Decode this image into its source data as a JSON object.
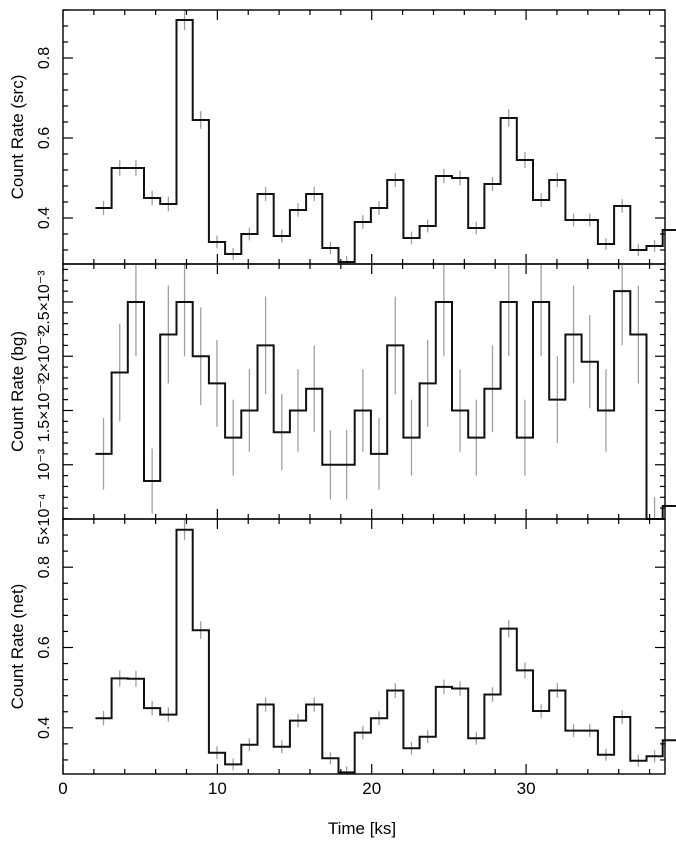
{
  "chart_data": {
    "type": "line",
    "style": "step histogram with vertical error bars (light grey)",
    "xlabel": "Time [ks]",
    "xlim": [
      0,
      39
    ],
    "x_ticks": [
      0,
      10,
      20,
      30
    ],
    "x_tick_labels": [
      "0",
      "10",
      "20",
      "30"
    ],
    "bin_width_ks": 1.05,
    "x": [
      2.1,
      3.15,
      4.2,
      5.25,
      6.3,
      7.35,
      8.4,
      9.45,
      10.5,
      11.55,
      12.6,
      13.65,
      14.7,
      15.75,
      16.8,
      17.85,
      18.9,
      19.95,
      21.0,
      22.05,
      23.1,
      24.15,
      25.2,
      26.25,
      27.3,
      28.35,
      29.4,
      30.45,
      31.5,
      32.55,
      33.6,
      34.65,
      35.7,
      36.75,
      37.8
    ],
    "panels": [
      {
        "ylabel": "Count Rate (src)",
        "ylim": [
          0.285,
          0.92
        ],
        "y_ticks": [
          0.4,
          0.6,
          0.8
        ],
        "y_tick_labels": [
          "0.4",
          "0.6",
          "0.8"
        ],
        "values": [
          0.425,
          0.525,
          0.525,
          0.45,
          0.435,
          0.895,
          0.645,
          0.34,
          0.31,
          0.36,
          0.46,
          0.355,
          0.42,
          0.46,
          0.325,
          0.29,
          0.39,
          0.425,
          0.495,
          0.35,
          0.38,
          0.505,
          0.5,
          0.375,
          0.485,
          0.65,
          0.545,
          0.445,
          0.495,
          0.395,
          0.395,
          0.335,
          0.43,
          0.32,
          0.33
        ],
        "errors": [
          0.018,
          0.02,
          0.02,
          0.018,
          0.018,
          0.025,
          0.022,
          0.016,
          0.015,
          0.016,
          0.018,
          0.016,
          0.017,
          0.018,
          0.015,
          0.015,
          0.017,
          0.017,
          0.018,
          0.016,
          0.016,
          0.018,
          0.018,
          0.016,
          0.018,
          0.022,
          0.02,
          0.017,
          0.018,
          0.016,
          0.016,
          0.015,
          0.017,
          0.015,
          0.015
        ],
        "last_bin_value": 0.37
      },
      {
        "ylabel": "Count Rate (bg)",
        "ylim": [
          0.0005,
          0.00285
        ],
        "y_ticks": [
          0.0005,
          0.001,
          0.0015,
          0.002,
          0.0025
        ],
        "y_tick_labels": [
          "5×10⁻⁴",
          "10⁻³",
          "1.5×10⁻³",
          "2×10⁻³",
          "2.5×10⁻³"
        ],
        "values": [
          0.0011,
          0.00185,
          0.0025,
          0.00085,
          0.0022,
          0.0025,
          0.002,
          0.00175,
          0.00125,
          0.0015,
          0.0021,
          0.0013,
          0.0015,
          0.0017,
          0.001,
          0.001,
          0.0015,
          0.0011,
          0.0021,
          0.00125,
          0.00175,
          0.0025,
          0.0015,
          0.00125,
          0.0017,
          0.0025,
          0.00125,
          0.0025,
          0.0016,
          0.0022,
          0.00195,
          0.0015,
          0.0026,
          0.0022,
          0.0005
        ],
        "errors": [
          0.00033,
          0.00045,
          0.0005,
          0.0003,
          0.00045,
          0.0005,
          0.00045,
          0.0004,
          0.00035,
          0.00038,
          0.00045,
          0.00035,
          0.00038,
          0.0004,
          0.00032,
          0.00032,
          0.00038,
          0.00033,
          0.00045,
          0.00035,
          0.0004,
          0.0005,
          0.00038,
          0.00035,
          0.0004,
          0.0005,
          0.00035,
          0.0005,
          0.0004,
          0.00045,
          0.00043,
          0.00038,
          0.0005,
          0.00045,
          0.0002
        ],
        "last_bin_value": 0.00062
      },
      {
        "ylabel": "Count Rate (net)",
        "ylim": [
          0.285,
          0.92
        ],
        "y_ticks": [
          0.4,
          0.6,
          0.8
        ],
        "y_tick_labels": [
          "0.4",
          "0.6",
          "0.8"
        ],
        "values": [
          0.424,
          0.523,
          0.522,
          0.449,
          0.433,
          0.893,
          0.643,
          0.338,
          0.309,
          0.358,
          0.458,
          0.353,
          0.418,
          0.458,
          0.324,
          0.289,
          0.388,
          0.424,
          0.493,
          0.349,
          0.378,
          0.502,
          0.498,
          0.374,
          0.483,
          0.647,
          0.543,
          0.442,
          0.493,
          0.393,
          0.393,
          0.333,
          0.427,
          0.318,
          0.329
        ],
        "errors": [
          0.018,
          0.02,
          0.02,
          0.018,
          0.018,
          0.025,
          0.022,
          0.016,
          0.015,
          0.016,
          0.018,
          0.016,
          0.017,
          0.018,
          0.015,
          0.015,
          0.017,
          0.017,
          0.018,
          0.016,
          0.016,
          0.018,
          0.018,
          0.016,
          0.018,
          0.022,
          0.02,
          0.017,
          0.018,
          0.016,
          0.016,
          0.015,
          0.017,
          0.015,
          0.015
        ],
        "last_bin_value": 0.369
      }
    ]
  }
}
